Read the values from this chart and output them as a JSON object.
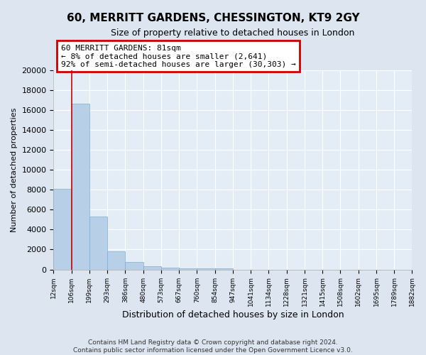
{
  "title": "60, MERRITT GARDENS, CHESSINGTON, KT9 2GY",
  "subtitle": "Size of property relative to detached houses in London",
  "xlabel": "Distribution of detached houses by size in London",
  "ylabel": "Number of detached properties",
  "bar_values": [
    8100,
    16600,
    5300,
    1800,
    750,
    340,
    190,
    135,
    110,
    80,
    0,
    0,
    0,
    0,
    0,
    0,
    0,
    0,
    0,
    0
  ],
  "categories": [
    "12sqm",
    "106sqm",
    "199sqm",
    "293sqm",
    "386sqm",
    "480sqm",
    "573sqm",
    "667sqm",
    "760sqm",
    "854sqm",
    "947sqm",
    "1041sqm",
    "1134sqm",
    "1228sqm",
    "1321sqm",
    "1415sqm",
    "1508sqm",
    "1602sqm",
    "1695sqm",
    "1789sqm",
    "1882sqm"
  ],
  "bar_color": "#b8cfe8",
  "bar_edge_color": "#7aadd4",
  "annotation_box_color": "#cc0000",
  "annotation_text_line1": "60 MERRITT GARDENS: 81sqm",
  "annotation_text_line2": "← 8% of detached houses are smaller (2,641)",
  "annotation_text_line3": "92% of semi-detached houses are larger (30,303) →",
  "vline_color": "#cc0000",
  "ylim": [
    0,
    20000
  ],
  "yticks": [
    0,
    2000,
    4000,
    6000,
    8000,
    10000,
    12000,
    14000,
    16000,
    18000,
    20000
  ],
  "bg_color": "#dde6f0",
  "plot_bg_color": "#e4ecf5",
  "grid_color": "#ffffff",
  "footer_line1": "Contains HM Land Registry data © Crown copyright and database right 2024.",
  "footer_line2": "Contains public sector information licensed under the Open Government Licence v3.0."
}
